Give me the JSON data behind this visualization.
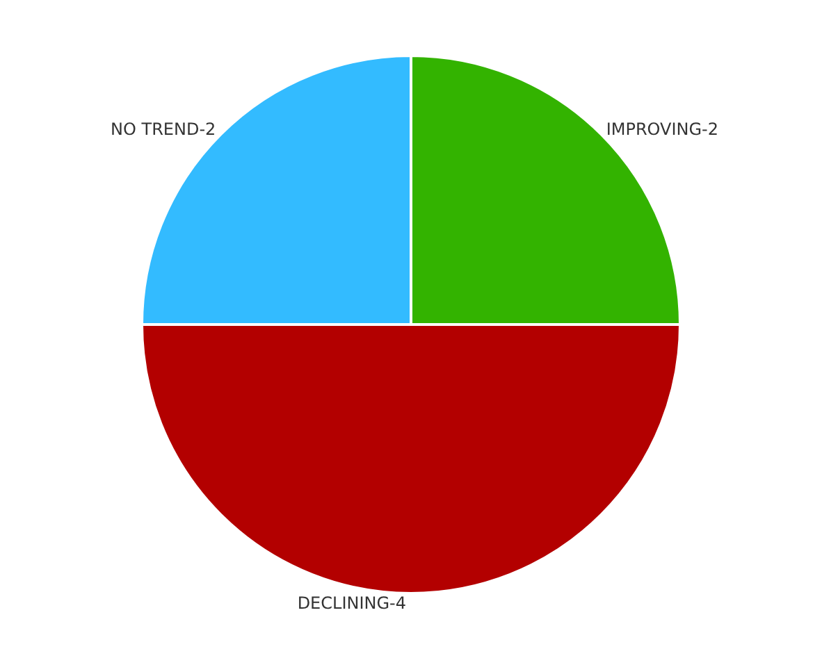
{
  "chart_data": {
    "type": "pie",
    "categories": [
      "IMPROVING-2",
      "DECLINING-4",
      "NO TREND-2"
    ],
    "values": [
      25,
      50,
      25
    ],
    "colors": [
      "#33b300",
      "#b30000",
      "#33bbff"
    ],
    "legend": false
  }
}
